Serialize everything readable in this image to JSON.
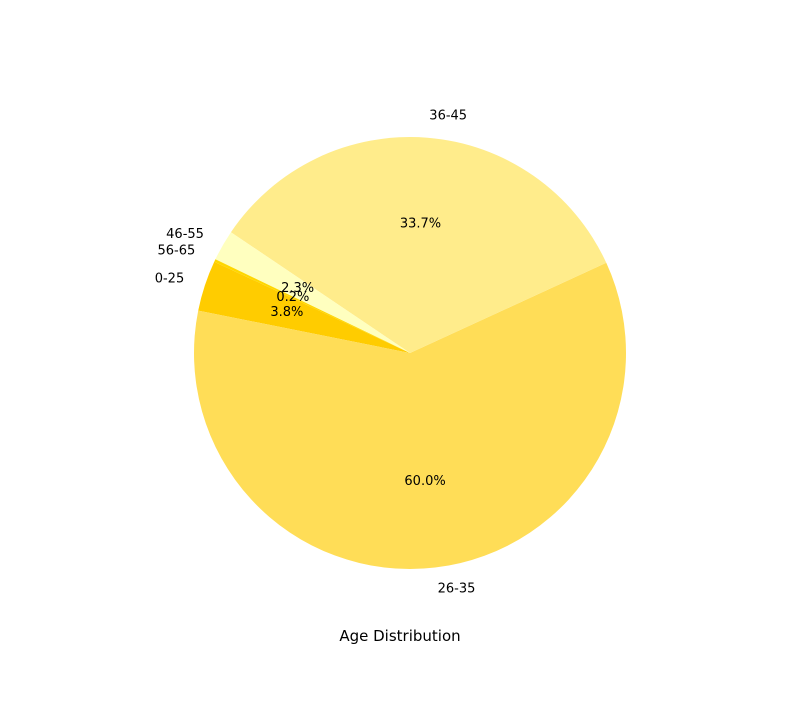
{
  "chart_data": {
    "type": "pie",
    "title": "Age Distribution",
    "categories": [
      "0-25",
      "26-35",
      "36-45",
      "46-55",
      "56-65"
    ],
    "values": [
      3.8,
      60.0,
      33.7,
      2.3,
      0.2
    ],
    "value_labels": [
      "3.8%",
      "60.0%",
      "33.7%",
      "2.3%",
      "0.2%"
    ],
    "colors": [
      "#FFCC00",
      "#FFDD57",
      "#FFEC8B",
      "#FFFFBF",
      "#FFD700"
    ],
    "start_angle_deg": 155,
    "direction": "counterclockwise",
    "legend": "none"
  }
}
